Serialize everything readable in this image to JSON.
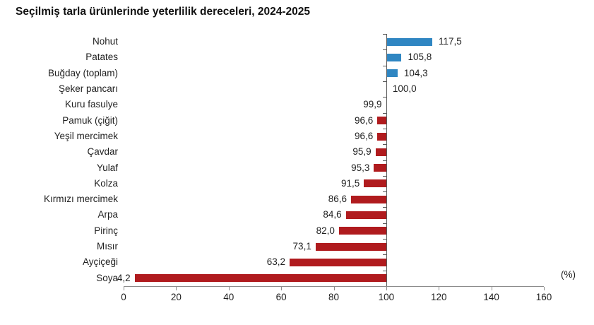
{
  "page": {
    "title": "Seçilmiş tarla ürünlerinde yeterlilik dereceleri, 2024-2025"
  },
  "axis": {
    "unit_label": "(%)"
  },
  "colors": {
    "surplus_blue": "#2f86c2",
    "deficit_red": "#b01b1e",
    "baseline_axis": "#595959",
    "x_axis": "#8c8c8c",
    "text": "#1f1f1f",
    "title_text": "#111111",
    "background": "#ffffff"
  },
  "chart_data": {
    "type": "bar",
    "orientation": "horizontal",
    "title": "Seçilmiş tarla ürünlerinde yeterlilik dereceleri, 2024-2025",
    "xlabel": "(%)",
    "baseline": 100,
    "xlim": [
      0,
      160
    ],
    "xticks": [
      0,
      20,
      40,
      60,
      80,
      100,
      120,
      140,
      160
    ],
    "xtick_labels": [
      "0",
      "20",
      "40",
      "60",
      "80",
      "100",
      "120",
      "140",
      "160"
    ],
    "grid": false,
    "legend": false,
    "categories": [
      "Nohut",
      "Patates",
      "Buğday (toplam)",
      "Şeker pancarı",
      "Kuru fasulye",
      "Pamuk (çiğit)",
      "Yeşil mercimek",
      "Çavdar",
      "Yulaf",
      "Kolza",
      "Kırmızı mercimek",
      "Arpa",
      "Pirinç",
      "Mısır",
      "Ayçiçeği",
      "Soya"
    ],
    "values": [
      117.5,
      105.8,
      104.3,
      100.0,
      99.9,
      96.6,
      96.6,
      95.9,
      95.3,
      91.5,
      86.6,
      84.6,
      82.0,
      73.1,
      63.2,
      4.2
    ],
    "value_labels": [
      "117,5",
      "105,8",
      "104,3",
      "100,0",
      "99,9",
      "96,6",
      "96,6",
      "95,9",
      "95,3",
      "91,5",
      "86,6",
      "84,6",
      "82,0",
      "73,1",
      "63,2",
      "4,2"
    ],
    "color_at_or_above_baseline": "#2f86c2",
    "color_below_baseline": "#b01b1e"
  }
}
